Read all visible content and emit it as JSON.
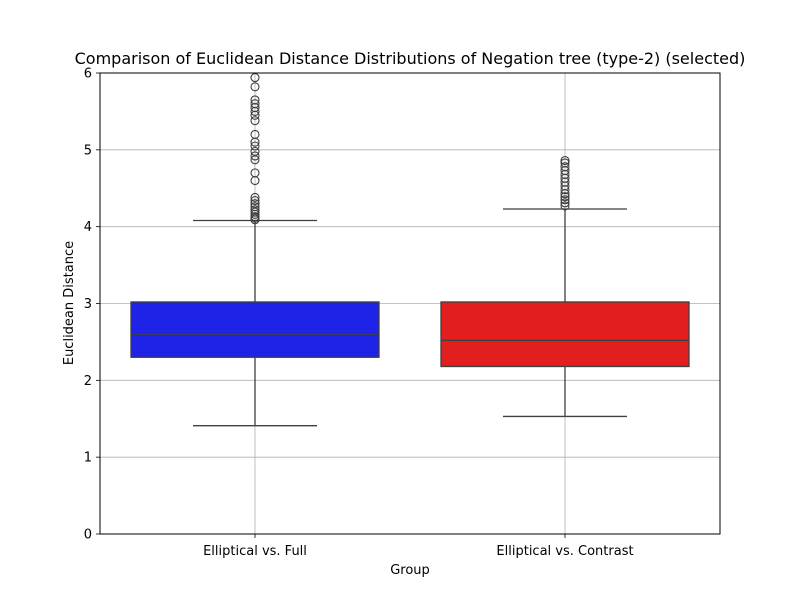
{
  "chart_data": {
    "type": "box",
    "title": "Comparison of Euclidean Distance Distributions of Negation tree (type-2) (selected)",
    "xlabel": "Group",
    "ylabel": "Euclidean Distance",
    "ylim": [
      0,
      6
    ],
    "yticks": [
      "0",
      "1",
      "2",
      "3",
      "4",
      "5",
      "6"
    ],
    "grid": true,
    "categories": [
      "Elliptical vs. Full",
      "Elliptical vs. Contrast"
    ],
    "boxes": [
      {
        "category": "Elliptical vs. Full",
        "color": "#1f23e8",
        "whisker_low": 1.41,
        "q1": 2.3,
        "median": 2.6,
        "q3": 3.02,
        "whisker_high": 4.08,
        "outliers": [
          4.09,
          4.11,
          4.13,
          4.16,
          4.19,
          4.22,
          4.26,
          4.3,
          4.34,
          4.38,
          4.6,
          4.7,
          4.87,
          4.92,
          4.98,
          5.05,
          5.1,
          5.2,
          5.38,
          5.45,
          5.5,
          5.55,
          5.6,
          5.65,
          5.82,
          5.94
        ]
      },
      {
        "category": "Elliptical vs. Contrast",
        "color": "#e31e1e",
        "whisker_low": 1.53,
        "q1": 2.18,
        "median": 2.52,
        "q3": 3.02,
        "whisker_high": 4.23,
        "outliers": [
          4.27,
          4.31,
          4.35,
          4.39,
          4.43,
          4.48,
          4.53,
          4.58,
          4.63,
          4.68,
          4.73,
          4.78,
          4.83,
          4.86
        ]
      }
    ]
  }
}
